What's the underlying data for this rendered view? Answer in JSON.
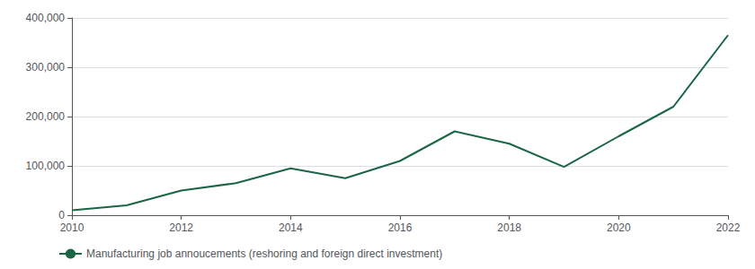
{
  "chart_data": {
    "type": "line",
    "x": [
      2010,
      2011,
      2012,
      2013,
      2014,
      2015,
      2016,
      2017,
      2018,
      2019,
      2020,
      2021,
      2022
    ],
    "series": [
      {
        "name": "Manufacturing job annoucements (reshoring and foreign direct investment)",
        "color": "#1a6644",
        "values": [
          10000,
          20000,
          50000,
          65000,
          95000,
          75000,
          110000,
          170000,
          145000,
          98000,
          160000,
          220000,
          365000
        ]
      }
    ],
    "xlim": [
      2010,
      2022
    ],
    "xticks": [
      2010,
      2012,
      2014,
      2016,
      2018,
      2020,
      2022
    ],
    "ylim": [
      0,
      400000
    ],
    "yticks": [
      0,
      {
        "value": 100000,
        "label": "100,000"
      },
      {
        "value": 200000,
        "label": "200,000"
      },
      {
        "value": 300000,
        "label": "300,000"
      },
      {
        "value": 400000,
        "label": "400,000"
      }
    ],
    "grid": true,
    "legend": "lower left"
  }
}
